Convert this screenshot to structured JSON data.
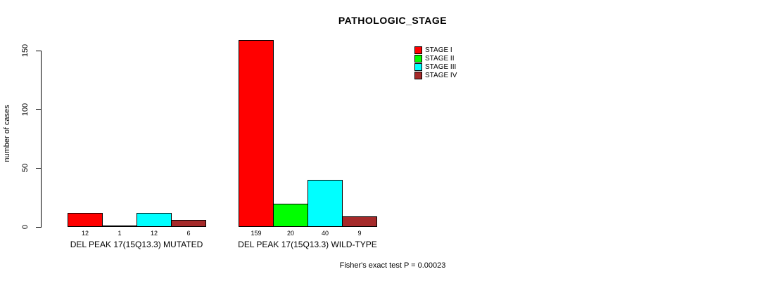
{
  "title": "PATHOLOGIC_STAGE",
  "footer": "Fisher's exact test P = 0.00023",
  "y_axis": {
    "label": "number of cases",
    "ticks": [
      0,
      50,
      100,
      150
    ]
  },
  "legend": {
    "position": "top-right",
    "entries": [
      {
        "label": "STAGE I",
        "color": "#FF0000"
      },
      {
        "label": "STAGE II",
        "color": "#00FF00"
      },
      {
        "label": "STAGE III",
        "color": "#00FFFF"
      },
      {
        "label": "STAGE IV",
        "color": "#A52A2A"
      }
    ]
  },
  "chart_data": {
    "type": "bar",
    "title": "PATHOLOGIC_STAGE",
    "ylabel": "number of cases",
    "xlabel": "",
    "ylim": [
      0,
      150
    ],
    "grid": false,
    "legend_position": "top-right",
    "series": [
      "STAGE I",
      "STAGE II",
      "STAGE III",
      "STAGE IV"
    ],
    "colors": [
      "#FF0000",
      "#00FF00",
      "#00FFFF",
      "#A52A2A"
    ],
    "groups": [
      {
        "label": "DEL PEAK 17(15Q13.3) MUTATED",
        "values": [
          12,
          1,
          12,
          6
        ]
      },
      {
        "label": "DEL PEAK 17(15Q13.3) WILD-TYPE",
        "values": [
          159,
          20,
          40,
          9
        ]
      }
    ],
    "annotation": "Fisher's exact test P = 0.00023"
  }
}
